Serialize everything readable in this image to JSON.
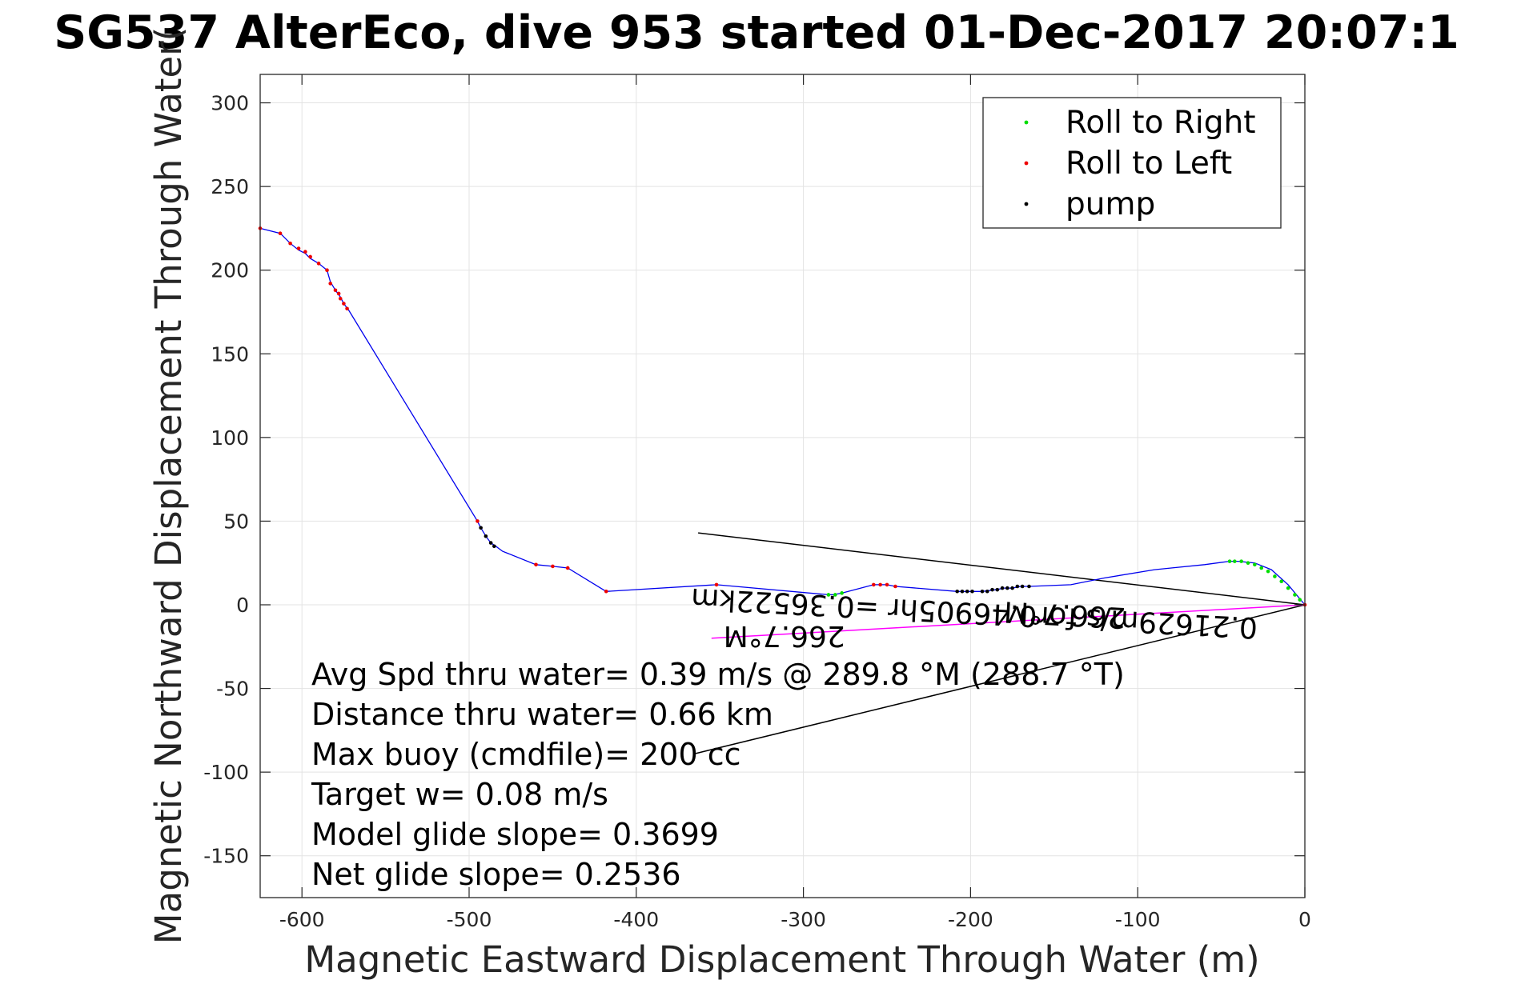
{
  "chart_data": {
    "type": "line",
    "title": "SG537 AlterEco, dive 953 started 01-Dec-2017 20:07:1",
    "xlabel": "Magnetic Eastward Displacement Through Water (m)",
    "ylabel": "Magnetic Northward Displacement Through Water(",
    "xlim": [
      -625,
      0
    ],
    "ylim": [
      -175,
      317
    ],
    "xticks": [
      -600,
      -500,
      -400,
      -300,
      -200,
      -100,
      0
    ],
    "yticks": [
      300,
      250,
      200,
      150,
      100,
      50,
      0,
      -50,
      -100,
      -150
    ],
    "grid": true,
    "legend_position": "top-right",
    "legend": [
      {
        "label": "Roll to Right",
        "color": "#00dd00"
      },
      {
        "label": "Roll to Left",
        "color": "#ee0000"
      },
      {
        "label": "pump",
        "color": "#000000"
      }
    ],
    "track": {
      "color": "#0000ee",
      "x": [
        -625,
        -613,
        -607,
        -602,
        -598,
        -595,
        -590,
        -585,
        -583,
        -580,
        -577,
        -575,
        -572,
        -495,
        -493,
        -490,
        -487,
        -484,
        -480,
        -460,
        -450,
        -441,
        -418,
        -352,
        -285,
        -282,
        -277,
        -258,
        -254,
        -250,
        -245,
        -208,
        -205,
        -200,
        -193,
        -185,
        -180,
        -175,
        -170,
        -165,
        -140,
        -120,
        -90,
        -80,
        -60,
        -45,
        -40,
        -30,
        -20,
        -10,
        0
      ],
      "y": [
        225,
        222,
        216,
        212,
        210,
        207,
        204,
        200,
        193,
        188,
        184,
        180,
        176,
        50,
        46,
        41,
        37,
        35,
        32,
        24,
        23,
        22,
        8,
        12,
        6,
        6,
        7,
        12,
        12,
        12,
        11,
        8,
        8,
        8,
        8,
        9,
        10,
        10,
        11,
        11,
        12,
        16,
        21,
        22,
        24,
        26,
        26,
        25,
        21,
        12,
        0
      ]
    },
    "roll_to_right": {
      "x": [
        -285,
        -281,
        -277,
        -45,
        -42,
        -38,
        -34,
        -30,
        -26,
        -22,
        -18,
        -14,
        -10,
        -6,
        -3
      ],
      "y": [
        6,
        6,
        7,
        26,
        26,
        26,
        25,
        24,
        22,
        20,
        17,
        14,
        10,
        6,
        3
      ]
    },
    "roll_to_left": {
      "x": [
        -625,
        -613,
        -607,
        -602,
        -598,
        -595,
        -590,
        -585,
        -583,
        -580,
        -578,
        -577,
        -575,
        -573,
        -495,
        -460,
        -450,
        -441,
        -418,
        -352,
        -258,
        -254,
        -250,
        -245,
        0
      ],
      "y": [
        225,
        222,
        216,
        213,
        211,
        208,
        204,
        200,
        192,
        188,
        186,
        183,
        180,
        177,
        50,
        24,
        23,
        22,
        8,
        12,
        12,
        12,
        12,
        11,
        0
      ]
    },
    "pump": {
      "x": [
        -493,
        -490,
        -487,
        -485,
        -208,
        -205,
        -202,
        -199,
        -193,
        -190,
        -187,
        -184,
        -181,
        -178,
        -175,
        -172,
        -169,
        -165
      ],
      "y": [
        46,
        41,
        37,
        35,
        8,
        8,
        8,
        8,
        8,
        8,
        9,
        9,
        10,
        10,
        10,
        11,
        11,
        11
      ]
    },
    "lines": [
      {
        "name": "avg-speed-line",
        "color": "#000000",
        "x": [
          0,
          -363
        ],
        "y": [
          0,
          43
        ]
      },
      {
        "name": "current-line",
        "color": "#000000",
        "x": [
          0,
          -365
        ],
        "y": [
          0,
          -89
        ]
      },
      {
        "name": "heading-line",
        "color": "#ff00ff",
        "x": [
          0,
          -355
        ],
        "y": [
          0,
          -20
        ]
      }
    ],
    "annotations": [
      {
        "text": "266.7°M",
        "x": -107,
        "y": -2,
        "rotation": 183
      },
      {
        "text": "0.21629m/s for0.46905hr =0.36522km",
        "x": -28,
        "y": -8,
        "rotation": 183
      },
      {
        "text": "266.7°M",
        "x": -275,
        "y": -13,
        "rotation": 180
      }
    ],
    "stats": [
      "Avg Spd thru water=  0.39 m/s @ 289.8 °M (288.7 °T)",
      "Distance thru water=  0.66 km",
      "Max buoy (cmdfile)= 200 cc",
      "Target w= 0.08 m/s",
      "Model glide slope= 0.3699",
      "Net glide slope= 0.2536"
    ]
  }
}
